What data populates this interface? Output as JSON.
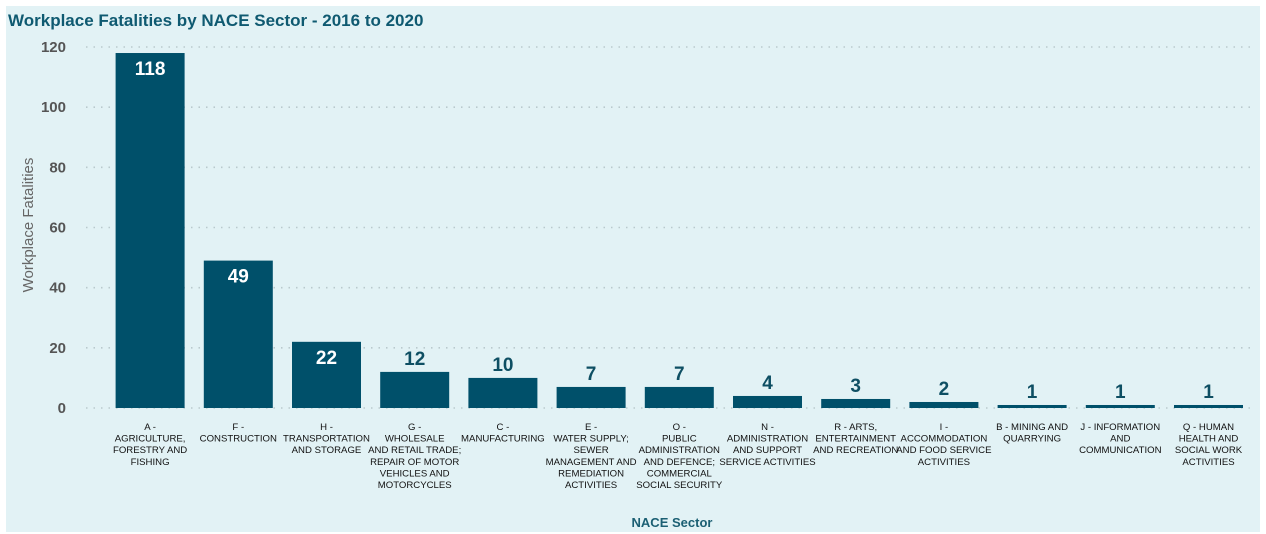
{
  "chart_data": {
    "type": "bar",
    "title": "Workplace Fatalities by NACE Sector - 2016 to 2020",
    "xlabel": "NACE Sector",
    "ylabel": "Workplace Fatalities",
    "ylim": [
      0,
      120
    ],
    "yticks": [
      0,
      20,
      40,
      60,
      80,
      100,
      120
    ],
    "grid": true,
    "categories": [
      [
        "A -",
        "AGRICULTURE,",
        "FORESTRY AND",
        "FISHING"
      ],
      [
        "F -",
        "CONSTRUCTION"
      ],
      [
        "H -",
        "TRANSPORTATION",
        "AND STORAGE"
      ],
      [
        "G -",
        "WHOLESALE",
        "AND RETAIL TRADE;",
        "REPAIR OF MOTOR",
        "VEHICLES AND",
        "MOTORCYCLES"
      ],
      [
        "C -",
        "MANUFACTURING"
      ],
      [
        "E -",
        "WATER SUPPLY;",
        "SEWER",
        "MANAGEMENT AND",
        "REMEDIATION",
        "ACTIVITIES"
      ],
      [
        "O -",
        "PUBLIC",
        "ADMINISTRATION",
        "AND DEFENCE;",
        "COMMERCIAL",
        "SOCIAL SECURITY"
      ],
      [
        "N -",
        "ADMINISTRATION",
        "AND SUPPORT",
        "SERVICE ACTIVITIES"
      ],
      [
        "R - ARTS,",
        "ENTERTAINMENT",
        "AND RECREATION"
      ],
      [
        "I -",
        "ACCOMMODATION",
        "AND FOOD SERVICE",
        "ACTIVITIES"
      ],
      [
        "B - MINING AND",
        "QUARRYING"
      ],
      [
        "J - INFORMATION",
        "AND",
        "COMMUNICATION"
      ],
      [
        "Q - HUMAN",
        "HEALTH AND",
        "SOCIAL WORK",
        "ACTIVITIES"
      ]
    ],
    "values": [
      118,
      49,
      22,
      12,
      10,
      7,
      7,
      4,
      3,
      2,
      1,
      1,
      1
    ],
    "value_labels": [
      "118",
      "49",
      "22",
      "12",
      "10",
      "7",
      "7",
      "4",
      "3",
      "2",
      "1",
      "1",
      "1"
    ],
    "colors": {
      "bar": "#00506a",
      "label_inside": "#ffffff",
      "label_outside": "#0e4f63",
      "background": "#e2f2f5",
      "title": "#0f5a71"
    }
  }
}
